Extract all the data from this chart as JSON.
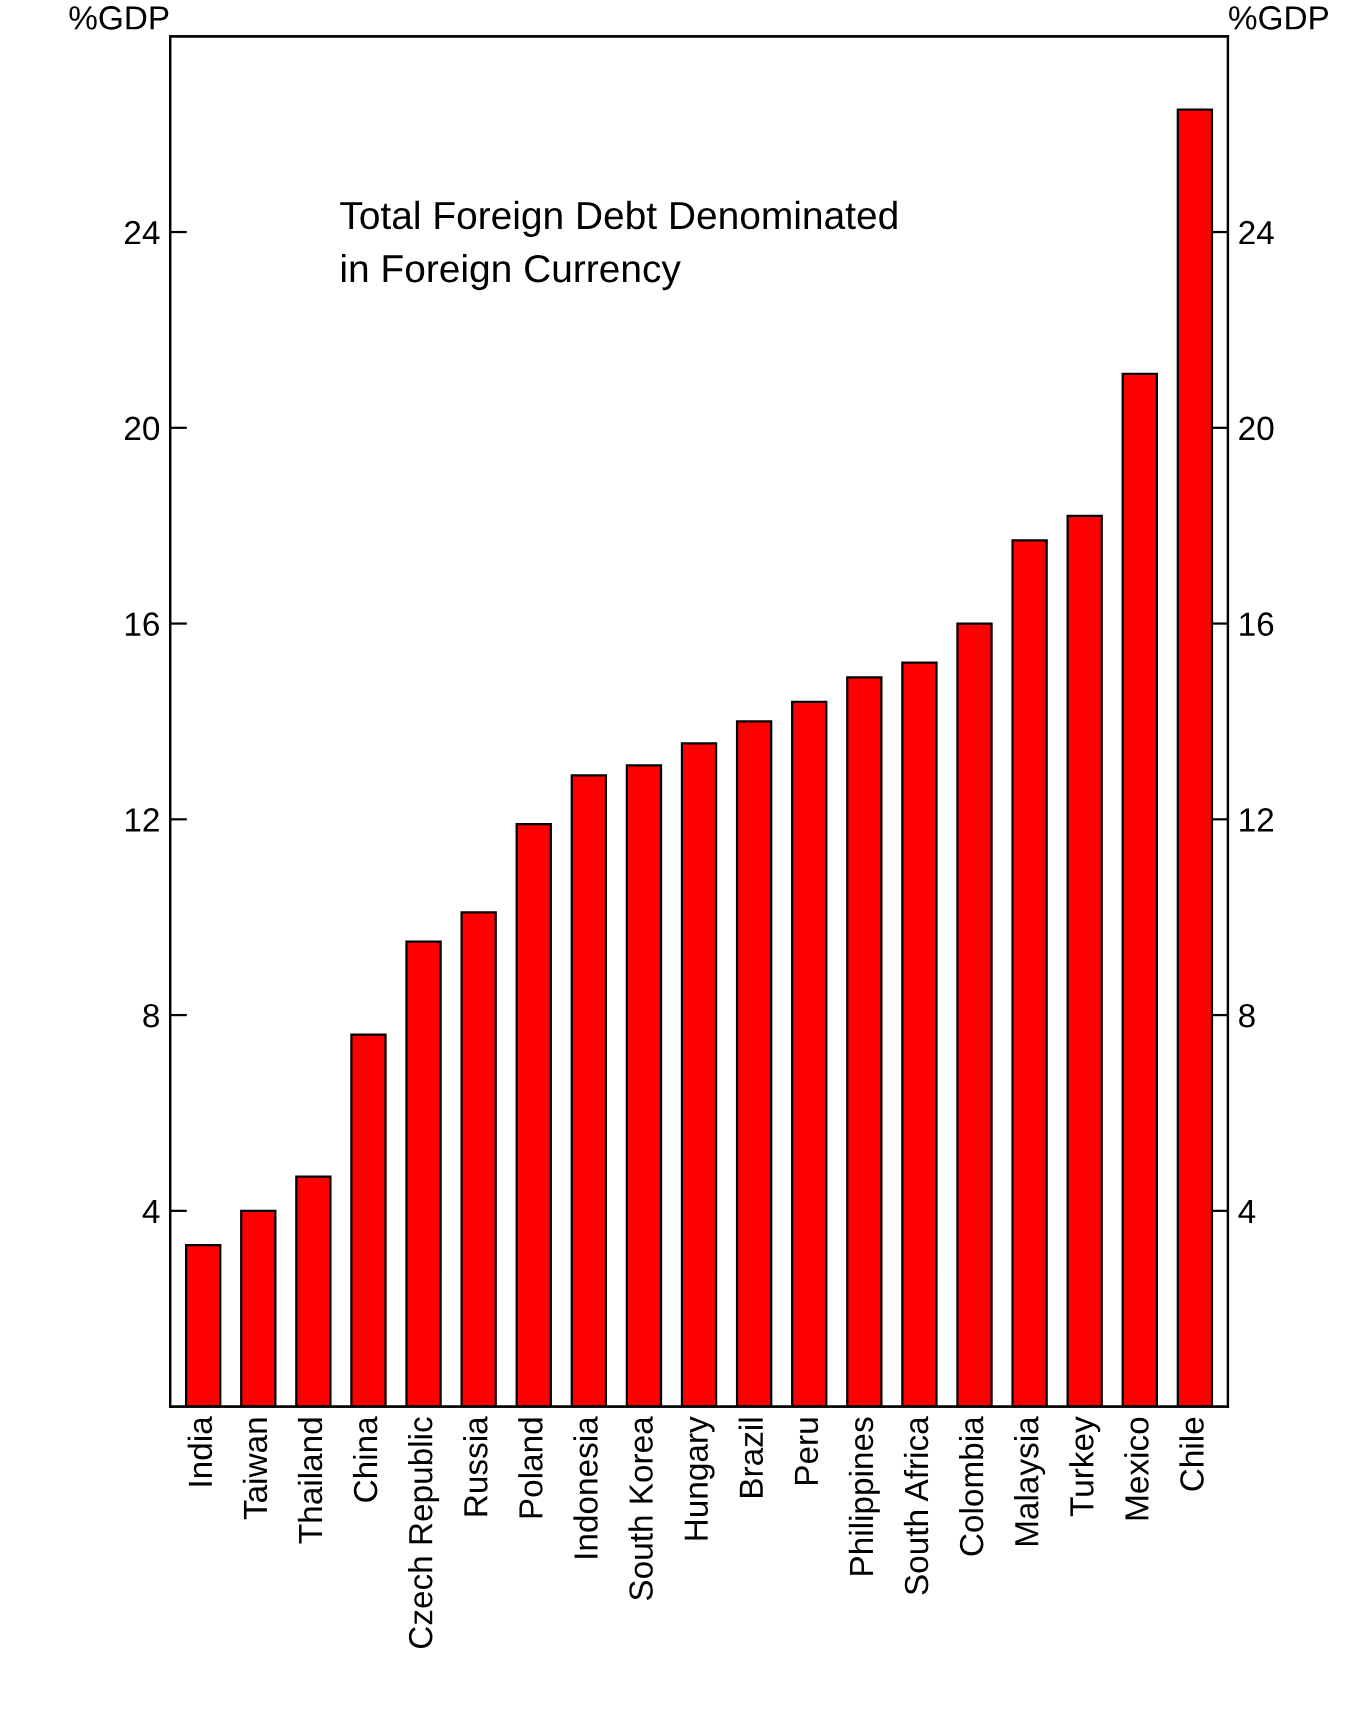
{
  "chart_data": {
    "type": "bar",
    "categories": [
      "India",
      "Taiwan",
      "Thailand",
      "China",
      "Czech Republic",
      "Russia",
      "Poland",
      "Indonesia",
      "South Korea",
      "Hungary",
      "Brazil",
      "Peru",
      "Philippines",
      "South Africa",
      "Colombia",
      "Malaysia",
      "Turkey",
      "Mexico",
      "Chile"
    ],
    "values": [
      3.3,
      4.0,
      4.7,
      7.6,
      9.5,
      10.1,
      11.9,
      12.9,
      13.1,
      13.55,
      14.0,
      14.4,
      14.9,
      15.2,
      16.0,
      17.7,
      18.2,
      21.1,
      26.5
    ],
    "color": "#ff0000",
    "ylabel": "%GDP",
    "y2label": "%GDP",
    "ylim": [
      0,
      28
    ],
    "yticks": [
      4,
      8,
      12,
      16,
      20,
      24
    ],
    "y2lim": [
      0,
      28
    ],
    "y2ticks": [
      4,
      8,
      12,
      16,
      20,
      24
    ],
    "annotations": [
      "Total Foreign Debt Denominated\nin Foreign Currency"
    ],
    "grid": false
  }
}
